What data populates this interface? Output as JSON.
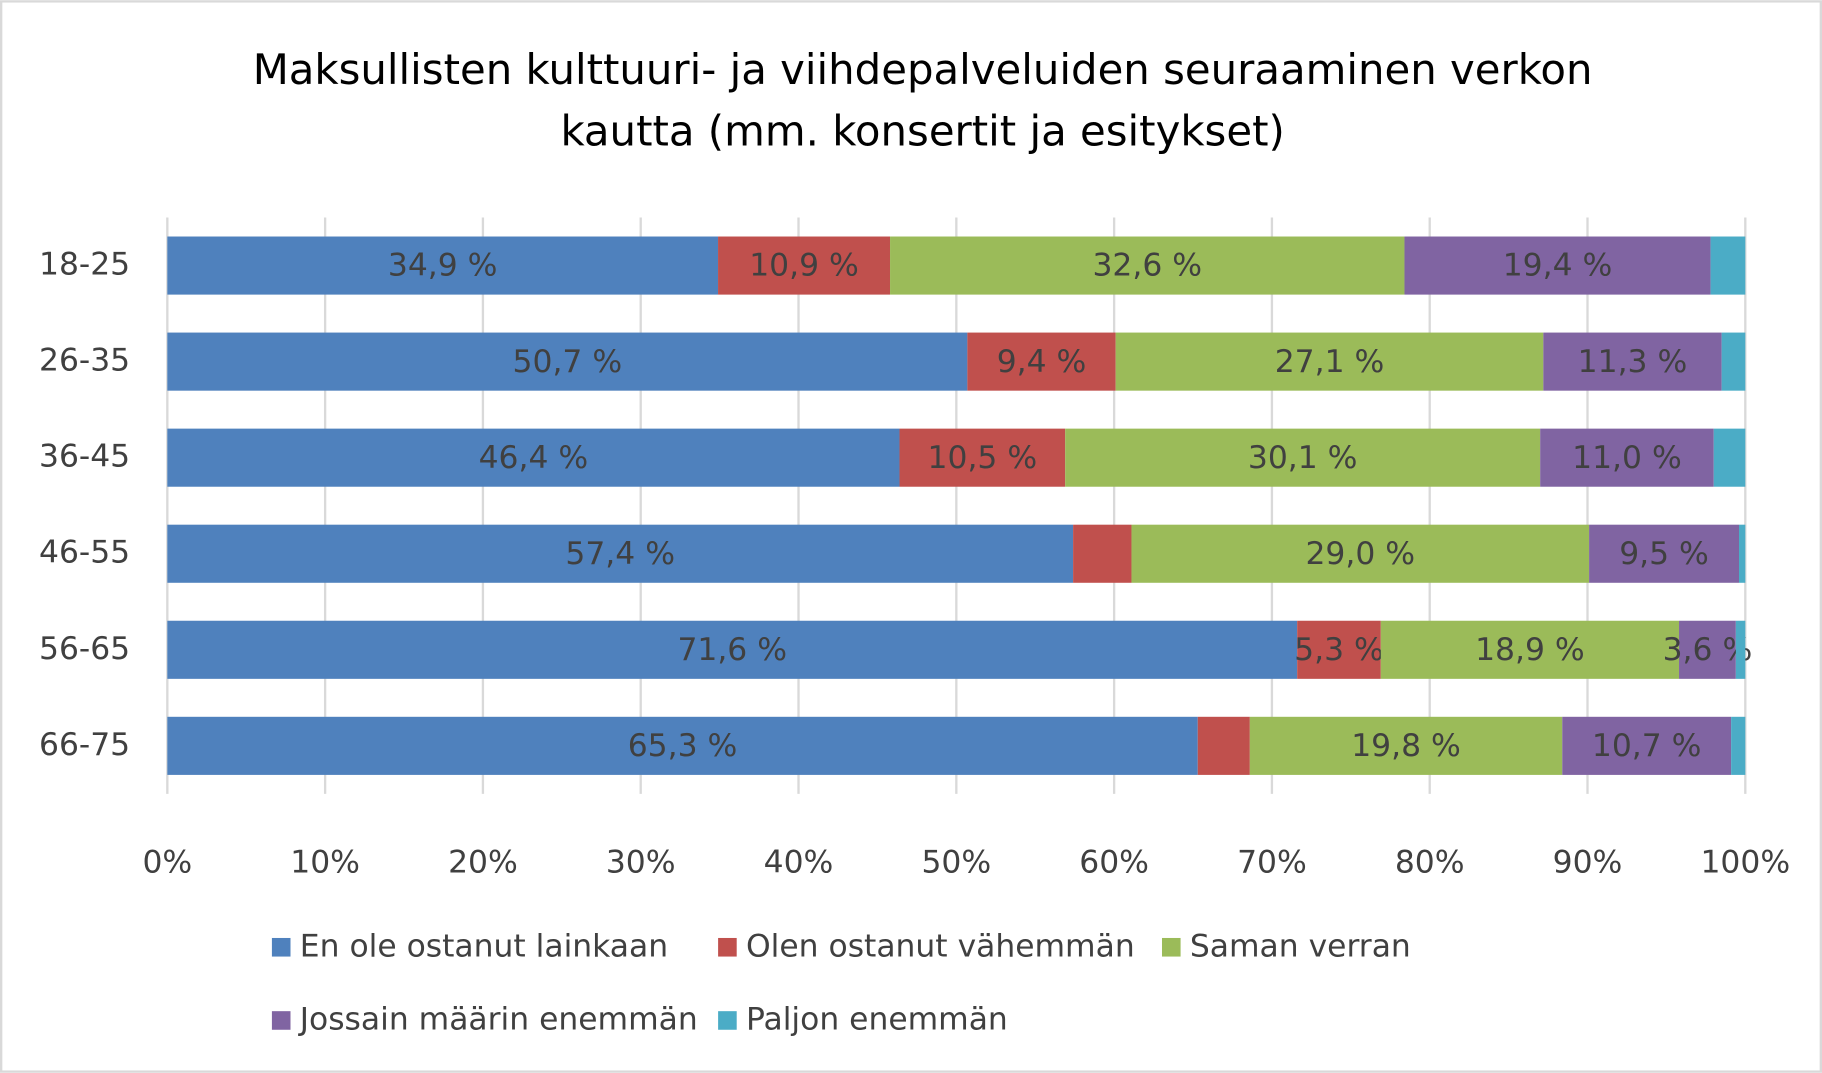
{
  "chart_data": {
    "type": "stacked-bar",
    "orientation": "horizontal",
    "title": [
      "Maksullisten kulttuuri- ja viihdepalveluiden seuraaminen verkon",
      "kautta (mm. konsertit ja esitykset)"
    ],
    "categories": [
      "18-25",
      "26-35",
      "36-45",
      "46-55",
      "56-65",
      "66-75"
    ],
    "series": [
      {
        "name": "En ole ostanut lainkaan",
        "color": "#4f81bd",
        "values": [
          34.9,
          50.7,
          46.4,
          57.4,
          71.6,
          65.3
        ],
        "value_labels": [
          "34,9 %",
          "50,7 %",
          "46,4 %",
          "57,4 %",
          "71,6 %",
          "65,3 %"
        ]
      },
      {
        "name": "Olen ostanut vähemmän",
        "color": "#c0504d",
        "values": [
          10.9,
          9.4,
          10.5,
          3.7,
          5.3,
          3.3
        ],
        "value_labels": [
          "10,9 %",
          "9,4 %",
          "10,5 %",
          null,
          "5,3 %",
          null
        ]
      },
      {
        "name": "Saman verran",
        "color": "#9bbb59",
        "values": [
          32.6,
          27.1,
          30.1,
          29.0,
          18.9,
          19.8
        ],
        "value_labels": [
          "32,6 %",
          "27,1 %",
          "30,1 %",
          "29,0 %",
          "18,9 %",
          "19,8 %"
        ]
      },
      {
        "name": "Jossain määrin enemmän",
        "color": "#8064a2",
        "values": [
          19.4,
          11.3,
          11.0,
          9.5,
          3.6,
          10.7
        ],
        "value_labels": [
          "19,4 %",
          "11,3 %",
          "11,0 %",
          "9,5 %",
          "3,6 %",
          "10,7 %"
        ]
      },
      {
        "name": "Paljon enemmän",
        "color": "#4bacc6",
        "values": [
          2.2,
          1.5,
          2.0,
          0.4,
          0.6,
          0.9
        ],
        "value_labels": [
          null,
          null,
          null,
          null,
          null,
          null
        ]
      }
    ],
    "xlim": [
      0,
      100
    ],
    "xticks": [
      {
        "value": 0,
        "label": "0%"
      },
      {
        "value": 10,
        "label": "10%"
      },
      {
        "value": 20,
        "label": "20%"
      },
      {
        "value": 30,
        "label": "30%"
      },
      {
        "value": 40,
        "label": "40%"
      },
      {
        "value": 50,
        "label": "50%"
      },
      {
        "value": 60,
        "label": "60%"
      },
      {
        "value": 70,
        "label": "70%"
      },
      {
        "value": 80,
        "label": "80%"
      },
      {
        "value": 90,
        "label": "90%"
      },
      {
        "value": 100,
        "label": "100%"
      }
    ],
    "grid": true,
    "legend": "bottom"
  }
}
